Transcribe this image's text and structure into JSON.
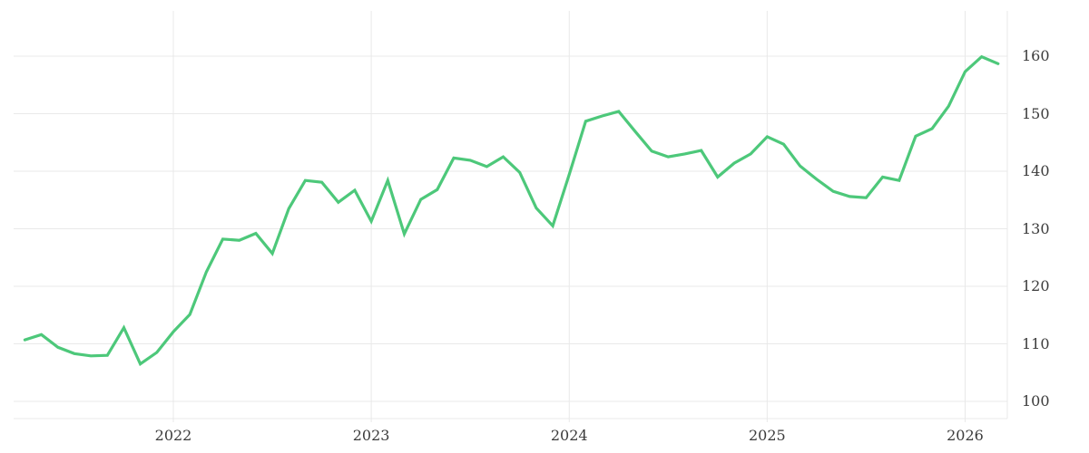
{
  "chart_data": {
    "type": "line",
    "title": "",
    "legend": false,
    "grid": true,
    "x": [
      "2021-04",
      "2021-05",
      "2021-06",
      "2021-07",
      "2021-08",
      "2021-09",
      "2021-10",
      "2021-11",
      "2021-12",
      "2022-01",
      "2022-02",
      "2022-03",
      "2022-04",
      "2022-05",
      "2022-06",
      "2022-07",
      "2022-08",
      "2022-09",
      "2022-10",
      "2022-11",
      "2022-12",
      "2023-01",
      "2023-02",
      "2023-03",
      "2023-04",
      "2023-05",
      "2023-06",
      "2023-07",
      "2023-08",
      "2023-09",
      "2023-10",
      "2023-11",
      "2023-12",
      "2024-01",
      "2024-02",
      "2024-03",
      "2024-04",
      "2024-05",
      "2024-06",
      "2024-07",
      "2024-08",
      "2024-09",
      "2024-10",
      "2024-11",
      "2024-12",
      "2025-01",
      "2025-02",
      "2025-03",
      "2025-04",
      "2025-05",
      "2025-06",
      "2025-07",
      "2025-08",
      "2025-09",
      "2025-10",
      "2025-11",
      "2025-12",
      "2026-01",
      "2026-02",
      "2026-03"
    ],
    "values": [
      110.7,
      111.6,
      109.4,
      108.3,
      107.9,
      108.0,
      112.8,
      106.5,
      108.5,
      112.1,
      115.1,
      122.5,
      128.2,
      128.0,
      129.2,
      125.7,
      133.5,
      138.4,
      138.1,
      134.6,
      136.7,
      131.3,
      138.4,
      129.1,
      135.1,
      136.8,
      142.3,
      141.9,
      140.8,
      142.5,
      139.8,
      133.6,
      130.5,
      139.4,
      148.7,
      149.6,
      150.4,
      146.9,
      143.5,
      142.5,
      143.0,
      143.6,
      139.0,
      141.4,
      143.0,
      146.0,
      144.7,
      140.9,
      138.6,
      136.5,
      135.6,
      135.4,
      139.0,
      138.4,
      146.1,
      147.4,
      151.3,
      157.3,
      159.9,
      158.7
    ],
    "y_ticks": [
      100,
      110,
      120,
      130,
      140,
      150,
      160
    ],
    "x_tick_labels": [
      "2022",
      "2023",
      "2024",
      "2025",
      "2026"
    ],
    "ylim": [
      97,
      168
    ],
    "legend_position": "none",
    "xlabel": "",
    "ylabel": "",
    "colors": {
      "line": "#4dc87a",
      "grid": "#e9e9e9",
      "axis_label": "#3b3b3b",
      "background": "#ffffff"
    }
  }
}
